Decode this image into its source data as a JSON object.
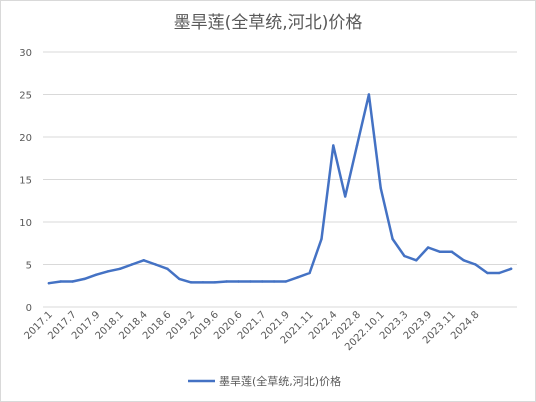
{
  "chart_data": {
    "type": "line",
    "title": "墨旱莲(全草统,河北)价格",
    "xlabel": "",
    "ylabel": "",
    "ylim": [
      0,
      30
    ],
    "yticks": [
      0,
      5,
      10,
      15,
      20,
      25,
      30
    ],
    "grid": "horizontal",
    "legend_position": "bottom",
    "line_color": "#4472C4",
    "grid_color": "#d9d9d9",
    "x_tick_labels": [
      "2017.1",
      "2017.7",
      "2017.9",
      "2018.1",
      "2018.4",
      "2018.6",
      "2019.2",
      "2019.6",
      "2020.6",
      "2021.7",
      "2021.9",
      "2021.11",
      "2022.4",
      "2022.8",
      "2022.10.1",
      "2023.3",
      "2023.9",
      "2023.11",
      "2024.8"
    ],
    "series": [
      {
        "name": "墨旱莲(全草统,河北)价格",
        "values": [
          2.8,
          3.0,
          3.0,
          3.3,
          3.8,
          4.2,
          4.5,
          5.0,
          5.5,
          5.0,
          4.5,
          3.3,
          2.9,
          2.9,
          2.9,
          3.0,
          3.0,
          3.0,
          3.0,
          3.0,
          3.0,
          3.5,
          4.0,
          8.0,
          19.0,
          13.0,
          19.0,
          25.0,
          14.0,
          8.0,
          6.0,
          5.5,
          7.0,
          6.5,
          6.5,
          5.5,
          5.0,
          4.0,
          4.0,
          4.5
        ]
      }
    ]
  }
}
